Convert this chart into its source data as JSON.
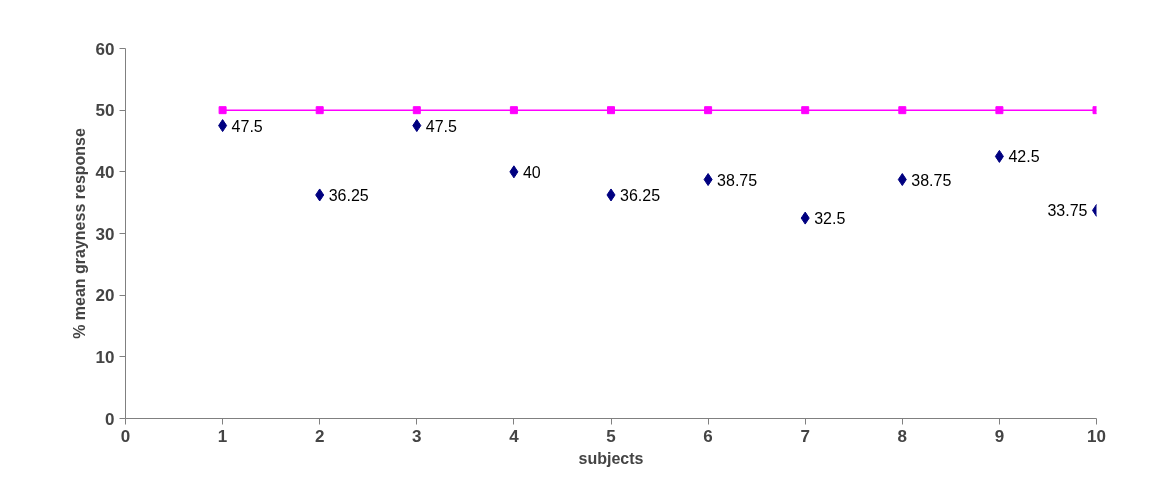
{
  "chart_data": {
    "type": "scatter",
    "xlabel": "subjects",
    "ylabel": "% mean grayness response",
    "x": [
      1,
      2,
      3,
      4,
      5,
      6,
      7,
      8,
      9,
      10
    ],
    "series": [
      {
        "color": "#000080",
        "marker": "diamond",
        "values": [
          47.5,
          36.25,
          47.5,
          40,
          36.25,
          38.75,
          32.5,
          38.75,
          42.5,
          33.75
        ],
        "value_labels": [
          "47.5",
          "36.25",
          "47.5",
          "40",
          "36.25",
          "38.75",
          "32.5",
          "38.75",
          "42.5",
          "33.75"
        ]
      },
      {
        "type": "line",
        "color": "#ff00ff",
        "marker": "square",
        "line_style": "solid",
        "values": [
          50,
          50,
          50,
          50,
          50,
          50,
          50,
          50,
          50,
          50
        ]
      }
    ],
    "xlim": [
      0,
      10
    ],
    "xticks": [
      0,
      1,
      2,
      3,
      4,
      5,
      6,
      7,
      8,
      9,
      10
    ],
    "ylim": [
      0,
      60
    ],
    "yticks": [
      0,
      10,
      20,
      30,
      40,
      50,
      60
    ],
    "grid": false
  }
}
